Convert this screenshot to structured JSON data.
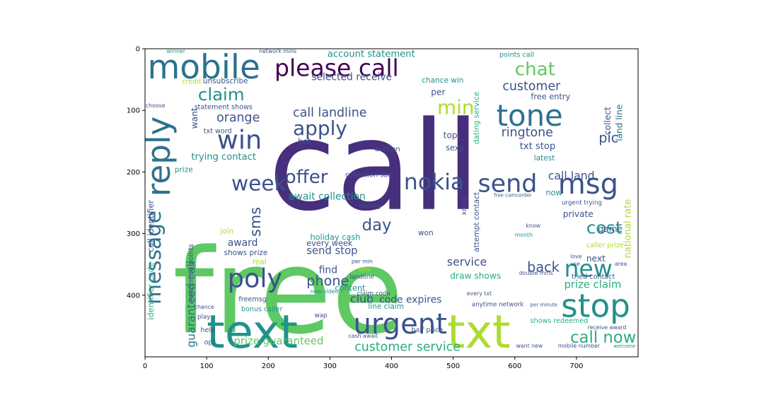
{
  "chart_data": {
    "type": "wordcloud",
    "title": "",
    "xlabel": "",
    "ylabel": "",
    "xlim": [
      0,
      800
    ],
    "ylim": [
      500,
      0
    ],
    "x_ticks": [
      0,
      100,
      200,
      300,
      400,
      500,
      600,
      700
    ],
    "y_ticks": [
      0,
      100,
      200,
      300,
      400
    ],
    "grid": false,
    "legend": "none",
    "palette": [
      "#440154",
      "#472f7d",
      "#3b528b",
      "#2c728e",
      "#21918c",
      "#28ae80",
      "#5ec962",
      "#addc30",
      "#fde725"
    ],
    "words": [
      {
        "text": "call",
        "x": 200,
        "y": 260,
        "size": 200,
        "color": "#472f7d"
      },
      {
        "text": "free",
        "x": 45,
        "y": 460,
        "size": 190,
        "color": "#5ec962"
      },
      {
        "text": "text",
        "x": 100,
        "y": 485,
        "size": 75,
        "color": "#21918c"
      },
      {
        "text": "txt",
        "x": 490,
        "y": 485,
        "size": 75,
        "color": "#addc30"
      },
      {
        "text": "mobile",
        "x": 4,
        "y": 48,
        "size": 54,
        "color": "#2c728e"
      },
      {
        "text": "please call",
        "x": 210,
        "y": 44,
        "size": 38,
        "color": "#440154"
      },
      {
        "text": "reply",
        "x": 40,
        "y": 240,
        "size": 52,
        "color": "#2c728e",
        "rotate": true
      },
      {
        "text": "tone",
        "x": 570,
        "y": 125,
        "size": 48,
        "color": "#2c728e"
      },
      {
        "text": "msg",
        "x": 670,
        "y": 235,
        "size": 46,
        "color": "#3b528b"
      },
      {
        "text": "stop",
        "x": 675,
        "y": 435,
        "size": 52,
        "color": "#21918c"
      },
      {
        "text": "urgent",
        "x": 338,
        "y": 462,
        "size": 46,
        "color": "#3b528b"
      },
      {
        "text": "send",
        "x": 540,
        "y": 232,
        "size": 40,
        "color": "#3b528b"
      },
      {
        "text": "nokia",
        "x": 420,
        "y": 228,
        "size": 36,
        "color": "#3b528b"
      },
      {
        "text": "win",
        "x": 117,
        "y": 162,
        "size": 42,
        "color": "#3b528b"
      },
      {
        "text": "apply",
        "x": 240,
        "y": 140,
        "size": 32,
        "color": "#3b528b"
      },
      {
        "text": "week",
        "x": 140,
        "y": 230,
        "size": 34,
        "color": "#3b528b"
      },
      {
        "text": "offer",
        "x": 227,
        "y": 218,
        "size": 30,
        "color": "#3b528b"
      },
      {
        "text": "poly",
        "x": 134,
        "y": 387,
        "size": 42,
        "color": "#3b528b"
      },
      {
        "text": "new",
        "x": 680,
        "y": 370,
        "size": 38,
        "color": "#21918c"
      },
      {
        "text": "call now",
        "x": 690,
        "y": 477,
        "size": 26,
        "color": "#28ae80"
      },
      {
        "text": "min",
        "x": 474,
        "y": 106,
        "size": 32,
        "color": "#addc30"
      },
      {
        "text": "chat",
        "x": 600,
        "y": 43,
        "size": 30,
        "color": "#5ec962"
      },
      {
        "text": "claim",
        "x": 86,
        "y": 84,
        "size": 28,
        "color": "#21918c"
      },
      {
        "text": "cost",
        "x": 716,
        "y": 300,
        "size": 28,
        "color": "#21918c"
      },
      {
        "text": "message",
        "x": 25,
        "y": 415,
        "size": 34,
        "color": "#2c728e",
        "rotate": true
      },
      {
        "text": "customer service",
        "x": 340,
        "y": 490,
        "size": 20,
        "color": "#28ae80"
      },
      {
        "text": "day",
        "x": 352,
        "y": 295,
        "size": 26,
        "color": "#3b528b"
      },
      {
        "text": "phone",
        "x": 262,
        "y": 384,
        "size": 22,
        "color": "#3b528b"
      },
      {
        "text": "back",
        "x": 620,
        "y": 362,
        "size": 22,
        "color": "#3b528b"
      },
      {
        "text": "call landline",
        "x": 240,
        "y": 110,
        "size": 20,
        "color": "#3b528b"
      },
      {
        "text": "customer",
        "x": 580,
        "y": 67,
        "size": 20,
        "color": "#3b528b"
      },
      {
        "text": "ringtone",
        "x": 578,
        "y": 142,
        "size": 20,
        "color": "#3b528b"
      },
      {
        "text": "orange",
        "x": 116,
        "y": 118,
        "size": 20,
        "color": "#3b528b"
      },
      {
        "text": "selected receive",
        "x": 270,
        "y": 51,
        "size": 16,
        "color": "#3b528b"
      },
      {
        "text": "account statement",
        "x": 296,
        "y": 13,
        "size": 15,
        "color": "#21918c"
      },
      {
        "text": "send stop",
        "x": 262,
        "y": 333,
        "size": 17,
        "color": "#3b528b"
      },
      {
        "text": "service",
        "x": 490,
        "y": 352,
        "size": 18,
        "color": "#3b528b"
      },
      {
        "text": "prize claim",
        "x": 680,
        "y": 388,
        "size": 17,
        "color": "#28ae80"
      },
      {
        "text": "prize guaranteed",
        "x": 144,
        "y": 480,
        "size": 17,
        "color": "#5ec962"
      },
      {
        "text": "call land",
        "x": 654,
        "y": 212,
        "size": 18,
        "color": "#3b528b"
      },
      {
        "text": "pic",
        "x": 736,
        "y": 152,
        "size": 22,
        "color": "#3b528b"
      },
      {
        "text": "sms",
        "x": 187,
        "y": 305,
        "size": 24,
        "color": "#3b528b",
        "rotate": true
      },
      {
        "text": "await collection",
        "x": 233,
        "y": 245,
        "size": 16,
        "color": "#21918c"
      },
      {
        "text": "txt stop",
        "x": 608,
        "y": 163,
        "size": 15,
        "color": "#3b528b"
      },
      {
        "text": "national rate",
        "x": 788,
        "y": 340,
        "size": 15,
        "color": "#addc30",
        "rotate": true
      },
      {
        "text": "guaranteed call",
        "x": 81,
        "y": 485,
        "size": 18,
        "color": "#2c728e",
        "rotate": true
      },
      {
        "text": "trying contact",
        "x": 75,
        "y": 180,
        "size": 15,
        "color": "#21918c"
      },
      {
        "text": "club",
        "x": 333,
        "y": 412,
        "size": 18,
        "color": "#3b528b"
      },
      {
        "text": "code expires",
        "x": 380,
        "y": 412,
        "size": 16,
        "color": "#3b528b"
      },
      {
        "text": "find",
        "x": 282,
        "y": 364,
        "size": 16,
        "color": "#3b528b"
      },
      {
        "text": "holiday cash",
        "x": 268,
        "y": 310,
        "size": 13,
        "color": "#21918c"
      },
      {
        "text": "every week",
        "x": 262,
        "y": 320,
        "size": 13,
        "color": "#3b528b"
      },
      {
        "text": "award",
        "x": 134,
        "y": 320,
        "size": 16,
        "color": "#3b528b"
      },
      {
        "text": "content",
        "x": 308,
        "y": 393,
        "size": 13,
        "color": "#21918c"
      },
      {
        "text": "draw shows",
        "x": 495,
        "y": 373,
        "size": 14,
        "color": "#28ae80"
      },
      {
        "text": "game",
        "x": 735,
        "y": 297,
        "size": 14,
        "color": "#3b528b"
      },
      {
        "text": "private",
        "x": 678,
        "y": 273,
        "size": 14,
        "color": "#3b528b"
      },
      {
        "text": "next",
        "x": 716,
        "y": 345,
        "size": 14,
        "color": "#3b528b"
      },
      {
        "text": "now",
        "x": 650,
        "y": 238,
        "size": 13,
        "color": "#21918c"
      },
      {
        "text": "collect",
        "x": 755,
        "y": 140,
        "size": 14,
        "color": "#3b528b",
        "rotate": true
      },
      {
        "text": "land line",
        "x": 774,
        "y": 150,
        "size": 14,
        "color": "#2c728e",
        "rotate": true
      },
      {
        "text": "want",
        "x": 85,
        "y": 130,
        "size": 14,
        "color": "#3b528b",
        "rotate": true
      },
      {
        "text": "shows prize",
        "x": 128,
        "y": 335,
        "size": 12,
        "color": "#3b528b"
      },
      {
        "text": "top",
        "x": 484,
        "y": 145,
        "size": 14,
        "color": "#3b528b"
      },
      {
        "text": "sexy",
        "x": 488,
        "y": 165,
        "size": 13,
        "color": "#3b528b"
      },
      {
        "text": "hot",
        "x": 248,
        "y": 155,
        "size": 13,
        "color": "#3b528b"
      },
      {
        "text": "per",
        "x": 464,
        "y": 75,
        "size": 14,
        "color": "#3b528b"
      },
      {
        "text": "free entry",
        "x": 626,
        "y": 82,
        "size": 13,
        "color": "#3b528b"
      },
      {
        "text": "latest",
        "x": 631,
        "y": 181,
        "size": 12,
        "color": "#21918c"
      },
      {
        "text": "chance win",
        "x": 449,
        "y": 55,
        "size": 12,
        "color": "#21918c"
      },
      {
        "text": "unsubscribe",
        "x": 94,
        "y": 56,
        "size": 12,
        "color": "#3b528b"
      },
      {
        "text": "statement shows",
        "x": 80,
        "y": 98,
        "size": 11,
        "color": "#3b528b"
      },
      {
        "text": "txt word",
        "x": 95,
        "y": 137,
        "size": 11,
        "color": "#3b528b"
      },
      {
        "text": "points call",
        "x": 575,
        "y": 13,
        "size": 11,
        "color": "#21918c"
      },
      {
        "text": "prize",
        "x": 48,
        "y": 200,
        "size": 12,
        "color": "#21918c"
      },
      {
        "text": "real",
        "x": 174,
        "y": 350,
        "size": 12,
        "color": "#addc30"
      },
      {
        "text": "join",
        "x": 122,
        "y": 300,
        "size": 12,
        "color": "#addc30"
      },
      {
        "text": "won",
        "x": 443,
        "y": 303,
        "size": 12,
        "color": "#3b528b"
      },
      {
        "text": "auction",
        "x": 373,
        "y": 166,
        "size": 11,
        "color": "#3b528b"
      },
      {
        "text": "caller prize",
        "x": 716,
        "y": 322,
        "size": 11,
        "color": "#addc30"
      },
      {
        "text": "bonus caller",
        "x": 156,
        "y": 426,
        "size": 11,
        "color": "#21918c"
      },
      {
        "text": "freemsg",
        "x": 152,
        "y": 410,
        "size": 11,
        "color": "#3b528b"
      },
      {
        "text": "help",
        "x": 90,
        "y": 460,
        "size": 11,
        "color": "#3b528b"
      },
      {
        "text": "opt",
        "x": 96,
        "y": 480,
        "size": 11,
        "color": "#3b528b"
      },
      {
        "text": "play",
        "x": 85,
        "y": 438,
        "size": 10,
        "color": "#3b528b"
      },
      {
        "text": "chance",
        "x": 80,
        "y": 422,
        "size": 9,
        "color": "#3b528b"
      },
      {
        "text": "line claim",
        "x": 362,
        "y": 422,
        "size": 12,
        "color": "#21918c"
      },
      {
        "text": "half price",
        "x": 432,
        "y": 460,
        "size": 11,
        "color": "#3b528b"
      },
      {
        "text": "shows redeemed",
        "x": 625,
        "y": 445,
        "size": 11,
        "color": "#28ae80"
      },
      {
        "text": "anytime network",
        "x": 530,
        "y": 418,
        "size": 10,
        "color": "#3b528b"
      },
      {
        "text": "every txt",
        "x": 522,
        "y": 400,
        "size": 9,
        "color": "#3b528b"
      },
      {
        "text": "collection sae",
        "x": 325,
        "y": 208,
        "size": 11,
        "color": "#3b528b"
      },
      {
        "text": "waiting",
        "x": 346,
        "y": 258,
        "size": 10,
        "color": "#3b528b"
      },
      {
        "text": "landline",
        "x": 332,
        "y": 373,
        "size": 10,
        "color": "#3b528b"
      },
      {
        "text": "claim code",
        "x": 344,
        "y": 400,
        "size": 10,
        "color": "#3b528b"
      },
      {
        "text": "new video",
        "x": 268,
        "y": 397,
        "size": 9,
        "color": "#21918c"
      },
      {
        "text": "per min",
        "x": 335,
        "y": 348,
        "size": 9,
        "color": "#3b528b"
      },
      {
        "text": "info",
        "x": 346,
        "y": 362,
        "size": 10,
        "color": "#addc30"
      },
      {
        "text": "cash await",
        "x": 330,
        "y": 469,
        "size": 9,
        "color": "#3b528b"
      },
      {
        "text": "wap",
        "x": 275,
        "y": 436,
        "size": 10,
        "color": "#3b528b"
      },
      {
        "text": "winner",
        "x": 35,
        "y": 7,
        "size": 9,
        "color": "#21918c"
      },
      {
        "text": "credit",
        "x": 60,
        "y": 57,
        "size": 11,
        "color": "#addc30"
      },
      {
        "text": "choose",
        "x": 1,
        "y": 95,
        "size": 9,
        "color": "#3b528b"
      },
      {
        "text": "network mins",
        "x": 185,
        "y": 7,
        "size": 9,
        "color": "#3b528b"
      },
      {
        "text": "know",
        "x": 618,
        "y": 290,
        "size": 9,
        "color": "#3b528b"
      },
      {
        "text": "month",
        "x": 600,
        "y": 305,
        "size": 9,
        "color": "#21918c"
      },
      {
        "text": "love",
        "x": 690,
        "y": 340,
        "size": 9,
        "color": "#3b528b"
      },
      {
        "text": "use",
        "x": 690,
        "y": 352,
        "size": 9,
        "color": "#3b528b"
      },
      {
        "text": "area",
        "x": 762,
        "y": 352,
        "size": 9,
        "color": "#3b528b"
      },
      {
        "text": "tried contact",
        "x": 692,
        "y": 373,
        "size": 11,
        "color": "#3b528b"
      },
      {
        "text": "receive award",
        "x": 718,
        "y": 455,
        "size": 9,
        "color": "#3b528b"
      },
      {
        "text": "mobile number",
        "x": 670,
        "y": 485,
        "size": 9,
        "color": "#3b528b"
      },
      {
        "text": "want new",
        "x": 602,
        "y": 485,
        "size": 9,
        "color": "#3b528b"
      },
      {
        "text": "welcome",
        "x": 760,
        "y": 485,
        "size": 8,
        "color": "#21918c"
      },
      {
        "text": "urgent trying",
        "x": 676,
        "y": 253,
        "size": 10,
        "color": "#3b528b"
      },
      {
        "text": "free camcorder",
        "x": 566,
        "y": 240,
        "size": 8,
        "color": "#3b528b"
      },
      {
        "text": "double mins",
        "x": 607,
        "y": 367,
        "size": 9,
        "color": "#3b528b"
      },
      {
        "text": "per minute",
        "x": 625,
        "y": 418,
        "size": 8,
        "color": "#3b528b"
      },
      {
        "text": "dating service",
        "x": 542,
        "y": 155,
        "size": 12,
        "color": "#28ae80",
        "rotate": true
      },
      {
        "text": "attempt contact",
        "x": 542,
        "y": 330,
        "size": 12,
        "color": "#3b528b",
        "rotate": true
      },
      {
        "text": "identifier code",
        "x": 14,
        "y": 440,
        "size": 13,
        "color": "#28ae80",
        "rotate": true
      },
      {
        "text": "call identifier",
        "x": 14,
        "y": 330,
        "size": 13,
        "color": "#3b528b",
        "rotate": true
      },
      {
        "text": "redeemed points",
        "x": 78,
        "y": 410,
        "size": 11,
        "color": "#3b528b",
        "rotate": true
      },
      {
        "text": "xmas",
        "x": 521,
        "y": 270,
        "size": 11,
        "color": "#3b528b",
        "rotate": true
      }
    ]
  }
}
